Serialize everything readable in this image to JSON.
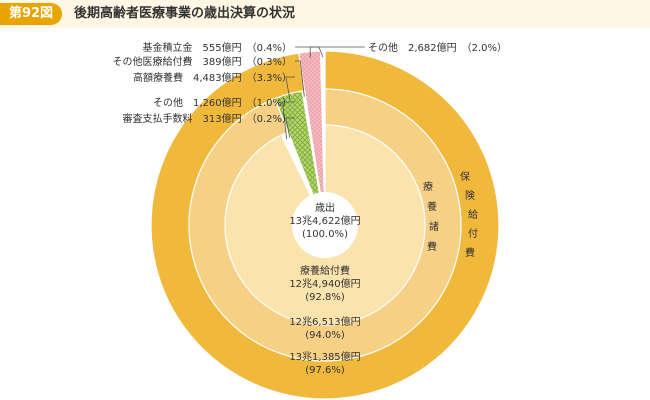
{
  "figure": {
    "number": "第92図",
    "title": "後期高齢者医療事業の歳出決算の状況"
  },
  "colors": {
    "outer": "#f0b93c",
    "middle": "#f6d185",
    "inner": "#fbe3ad",
    "green": "#b5d66a",
    "pink": "#f5b8bf",
    "header_bg": "#fff7e4",
    "accent": "#e8a400"
  },
  "chart_data": {
    "type": "pie",
    "center": {
      "label": "歳出",
      "value": "13兆4,622億円",
      "percent": "(100.0%)"
    },
    "rings": [
      {
        "name": "保険給付費",
        "slices": [
          {
            "label": "保険給付費",
            "value_text": "13兆1,385億円",
            "percent": 97.6,
            "percent_text": "(97.6%)",
            "fill": "outer"
          },
          {
            "label": "その他",
            "value_text": "2,682億円",
            "percent": 2.0,
            "percent_text": "(2.0%)",
            "fill": "pink"
          },
          {
            "label": "基金積立金",
            "value_text": "555億円",
            "percent": 0.4,
            "percent_text": "(0.4%)",
            "fill": "white"
          }
        ]
      },
      {
        "name": "療養諸費",
        "slices": [
          {
            "label": "療養諸費",
            "value_text": "12兆6,513億円",
            "percent": 94.0,
            "percent_text": "(94.0%)",
            "fill": "middle"
          },
          {
            "label": "高額療養費",
            "value_text": "4,483億円",
            "percent": 3.3,
            "percent_text": "(3.3%)",
            "fill": "green"
          },
          {
            "label": "その他医療給付費",
            "value_text": "389億円",
            "percent": 0.3,
            "percent_text": "(0.3%)",
            "fill": "white"
          }
        ]
      },
      {
        "name": "療養給付費",
        "slices": [
          {
            "label": "療養給付費",
            "value_text": "12兆4,940億円",
            "percent": 92.8,
            "percent_text": "(92.8%)",
            "fill": "inner"
          },
          {
            "label": "その他",
            "value_text": "1,260億円",
            "percent": 1.0,
            "percent_text": "(1.0%)",
            "fill": "white"
          },
          {
            "label": "審査支払手数料",
            "value_text": "313億円",
            "percent": 0.2,
            "percent_text": "(0.2%)",
            "fill": "pink"
          }
        ]
      }
    ],
    "ring_titles": {
      "outer": [
        "保",
        "険",
        "給",
        "付",
        "費"
      ],
      "middle": [
        "療",
        "養",
        "諸",
        "費"
      ]
    }
  }
}
